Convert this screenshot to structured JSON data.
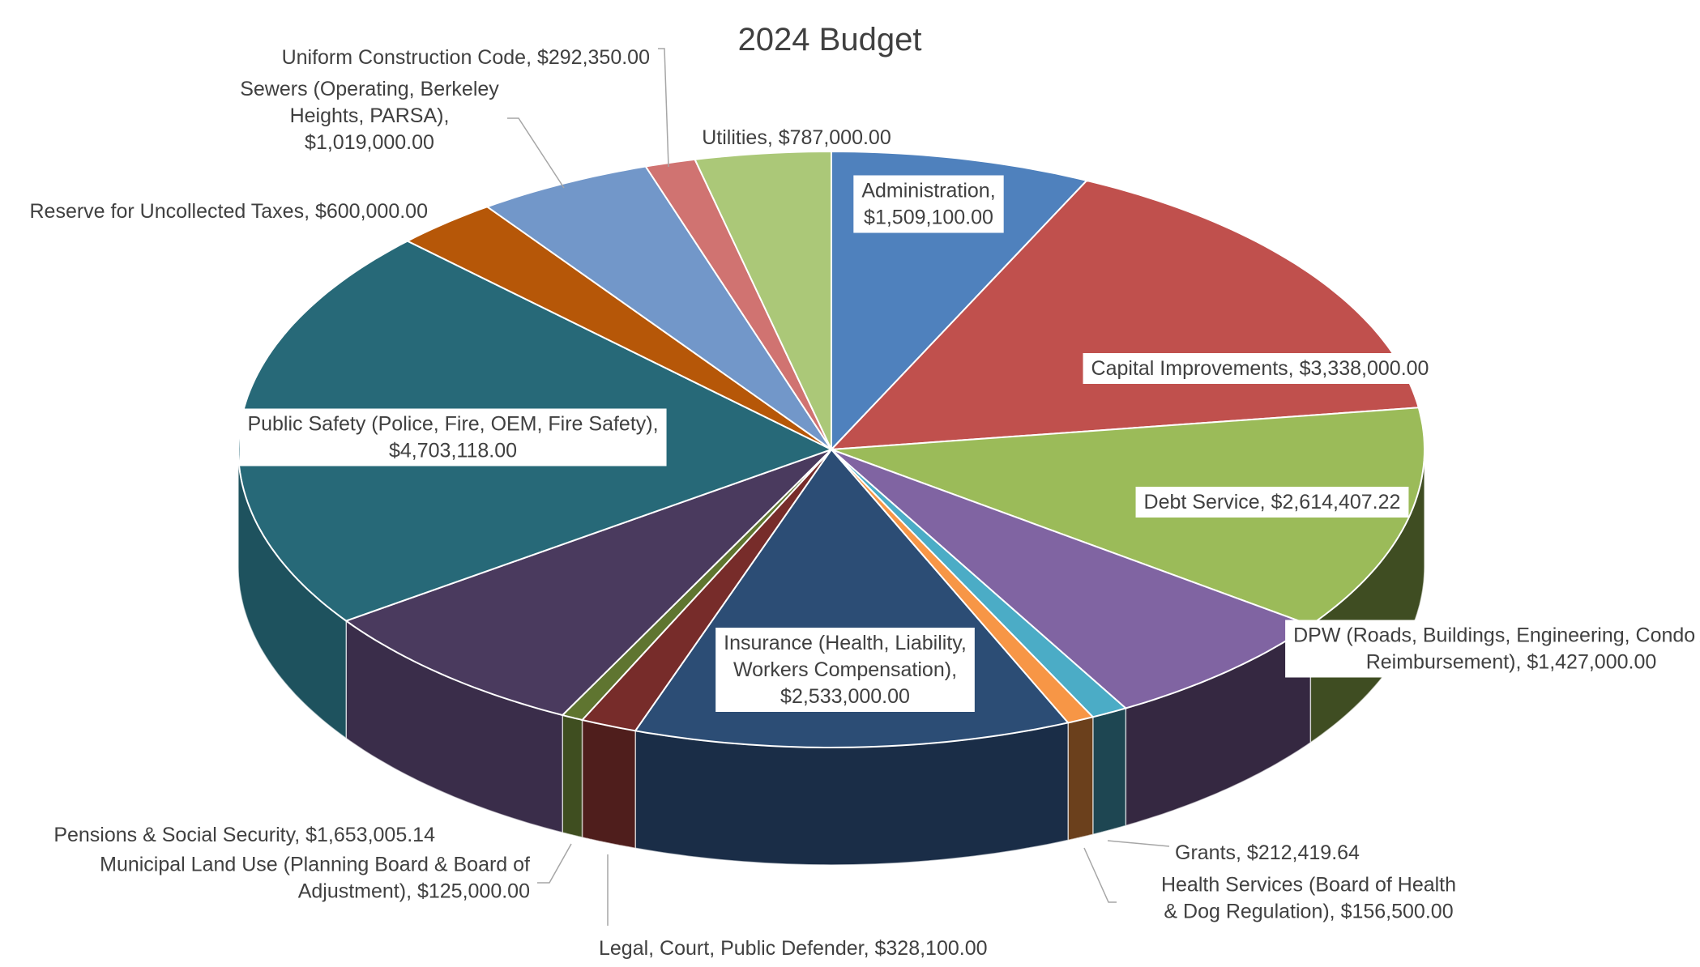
{
  "chart_data": {
    "type": "pie",
    "style": "3d",
    "title": "2024 Budget",
    "slices": [
      {
        "name": "Administration",
        "label": "Administration,",
        "value_label": "$1,509,100.00",
        "value": 1509100.0,
        "color": "#4f81bd",
        "side": "#3a5f8d"
      },
      {
        "name": "Capital Improvements",
        "label": "Capital Improvements,",
        "value_label": "$3,338,000.00",
        "value": 3338000.0,
        "color": "#c0504d",
        "side": "#8e3b39"
      },
      {
        "name": "Debt Service",
        "label": "Debt Service,",
        "value_label": "$2,614,407.22",
        "value": 2614407.22,
        "color": "#9bbb59",
        "side": "#3f4d22"
      },
      {
        "name": "DPW",
        "label": "DPW (Roads, Buildings, Engineering, Condo Act",
        "label2": "Reimbursement),",
        "value_label": "$1,427,000.00",
        "value": 1427000.0,
        "color": "#8064a2",
        "side": "#352841"
      },
      {
        "name": "Grants",
        "label": "Grants,",
        "value_label": "$212,419.64",
        "value": 212419.64,
        "color": "#4bacc6",
        "side": "#1e4652"
      },
      {
        "name": "Health Services",
        "label": "Health Services (Board of Health",
        "label2": "& Dog Regulation),",
        "value_label": "$156,500.00",
        "value": 156500.0,
        "color": "#f79646",
        "side": "#6b401c"
      },
      {
        "name": "Insurance",
        "label": "Insurance (Health, Liability,",
        "label2": "Workers Compensation),",
        "value_label": "$2,533,000.00",
        "value": 2533000.0,
        "color": "#2c4d75",
        "side": "#1a2d47"
      },
      {
        "name": "Legal",
        "label": "Legal, Court, Public Defender,",
        "value_label": "$328,100.00",
        "value": 328100.0,
        "color": "#772c2a",
        "side": "#4f1e1c"
      },
      {
        "name": "Municipal Land Use",
        "label": "Municipal Land Use (Planning Board & Board of",
        "label2": "Adjustment),",
        "value_label": "$125,000.00",
        "value": 125000.0,
        "color": "#5f7530",
        "side": "#3f4e20"
      },
      {
        "name": "Pensions",
        "label": "Pensions & Social Security,",
        "value_label": "$1,653,005.14",
        "value": 1653005.14,
        "color": "#4a3a5e",
        "side": "#3a2d4a"
      },
      {
        "name": "Public Safety",
        "label": "Public Safety (Police, Fire, OEM, Fire Safety),",
        "value_label": "$4,703,118.00",
        "value": 4703118.0,
        "color": "#276978",
        "side": "#1e525e"
      },
      {
        "name": "Reserve for Uncollected Taxes",
        "label": "Reserve for Uncollected Taxes,",
        "value_label": "$600,000.00",
        "value": 600000.0,
        "color": "#b65708",
        "side": "#7a3a05"
      },
      {
        "name": "Sewers",
        "label": "Sewers (Operating, Berkeley",
        "label2": "Heights, PARSA),",
        "value_label": "$1,019,000.00",
        "value": 1019000.0,
        "color": "#7297c9",
        "side": "#4d6a91"
      },
      {
        "name": "Uniform Construction Code",
        "label": "Uniform Construction Code,",
        "value_label": "$292,350.00",
        "value": 292350.0,
        "color": "#d07371",
        "side": "#9a5351"
      },
      {
        "name": "Utilities",
        "label": "Utilities,",
        "value_label": "$787,000.00",
        "value": 787000.0,
        "color": "#abc878",
        "side": "#6f8a45"
      }
    ]
  }
}
